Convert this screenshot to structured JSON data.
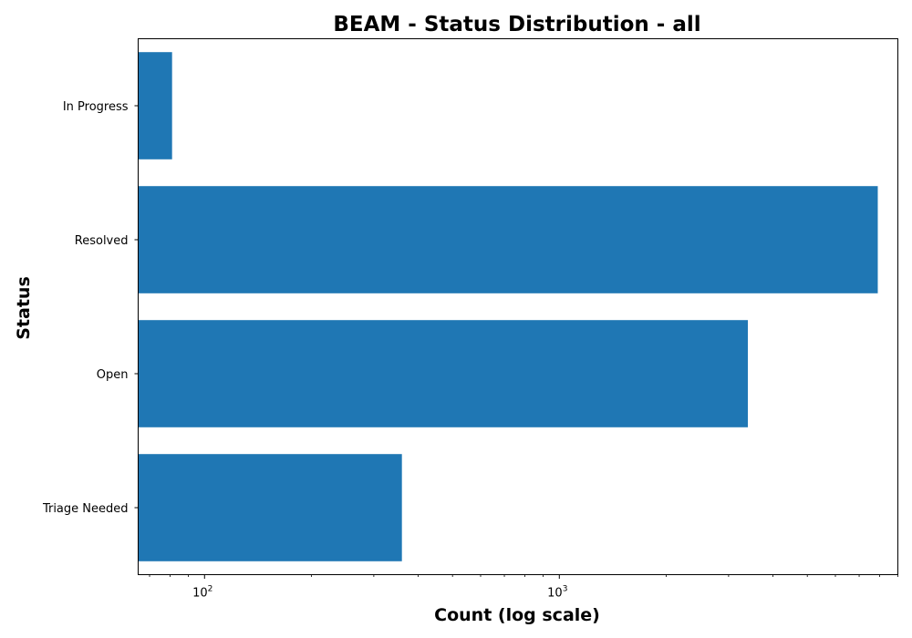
{
  "chart_data": {
    "type": "bar",
    "orientation": "horizontal",
    "title": "BEAM - Status Distribution - all",
    "xlabel": "Count (log scale)",
    "ylabel": "Status",
    "x_scale": "log",
    "xlim": [
      65,
      9000
    ],
    "x_major_ticks": [
      100,
      1000
    ],
    "x_tick_labels": [
      "10",
      "10"
    ],
    "x_tick_exponents": [
      "2",
      "3"
    ],
    "categories": [
      "In Progress",
      "Resolved",
      "Open",
      "Triage Needed"
    ],
    "values": [
      81,
      7900,
      3400,
      360
    ],
    "bar_color": "#1f77b4",
    "grid": false,
    "legend": "none"
  }
}
